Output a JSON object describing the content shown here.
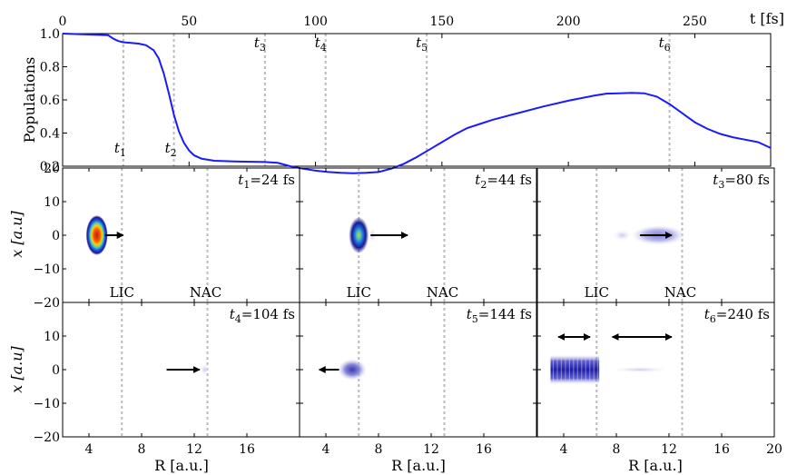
{
  "chart_data": [
    {
      "type": "line",
      "ylabel": "Populations",
      "xunit_label": "t [fs]",
      "xlim": [
        0,
        280
      ],
      "ylim": [
        0.2,
        1.0
      ],
      "x_ticks": [
        "0",
        "50",
        "100",
        "150",
        "200",
        "250"
      ],
      "y_ticks": [
        "1.0",
        "0.8",
        "0.6",
        "0.4",
        "0.2"
      ],
      "markers": [
        {
          "label": "t1",
          "t": 24
        },
        {
          "label": "t2",
          "t": 44
        },
        {
          "label": "t3",
          "t": 80
        },
        {
          "label": "t4",
          "t": 104
        },
        {
          "label": "t5",
          "t": 144
        },
        {
          "label": "t6",
          "t": 240
        }
      ],
      "series": [
        {
          "color": "#1a1aff",
          "x": [
            0,
            18,
            20,
            22,
            24,
            26,
            30,
            33,
            36,
            38,
            40,
            42,
            44,
            46,
            48,
            50,
            52,
            55,
            60,
            70,
            80,
            85,
            90,
            95,
            100,
            105,
            110,
            115,
            120,
            125,
            130,
            135,
            140,
            145,
            150,
            155,
            160,
            165,
            170,
            180,
            190,
            200,
            210,
            215,
            220,
            225,
            230,
            235,
            240,
            245,
            250,
            255,
            260,
            265,
            270,
            275,
            280
          ],
          "y": [
            1.0,
            0.99,
            0.97,
            0.955,
            0.948,
            0.945,
            0.94,
            0.93,
            0.9,
            0.85,
            0.76,
            0.64,
            0.51,
            0.41,
            0.34,
            0.295,
            0.265,
            0.245,
            0.233,
            0.228,
            0.225,
            0.22,
            0.2,
            0.185,
            0.173,
            0.165,
            0.16,
            0.158,
            0.16,
            0.165,
            0.185,
            0.215,
            0.255,
            0.3,
            0.345,
            0.39,
            0.43,
            0.455,
            0.48,
            0.52,
            0.56,
            0.595,
            0.625,
            0.638,
            0.64,
            0.642,
            0.64,
            0.62,
            0.575,
            0.52,
            0.465,
            0.425,
            0.395,
            0.375,
            0.36,
            0.345,
            0.31
          ]
        }
      ]
    },
    {
      "type": "heatmap",
      "xlabel": "R [a.u.]",
      "ylabel": "x [a.u]",
      "xlim": [
        2,
        20
      ],
      "ylim": [
        -20,
        20
      ],
      "x_ticks": [
        "4",
        "8",
        "12",
        "16",
        "20"
      ],
      "y_ticks": [
        "20",
        "10",
        "0",
        "−10",
        "−20"
      ],
      "region_labels": [
        "LIC",
        "NAC"
      ],
      "region_lines_R": [
        6.5,
        13
      ],
      "panels": [
        {
          "title": "t1 = 24 fs",
          "t_label": "t",
          "t_sub": "1",
          "t_value": "=24 fs",
          "show_regions": true,
          "packets": [
            {
              "R": 4.6,
              "x": 0,
              "intensity": "high"
            }
          ],
          "arrows": [
            {
              "from_R": 5.2,
              "to_R": 6.6,
              "dir": "right"
            }
          ]
        },
        {
          "title": "t2 = 44 fs",
          "t_label": "t",
          "t_sub": "2",
          "t_value": "=44 fs",
          "show_regions": true,
          "packets": [
            {
              "R": 6.5,
              "x": 0,
              "intensity": "medium"
            }
          ],
          "arrows": [
            {
              "from_R": 7.4,
              "to_R": 10.2,
              "dir": "right"
            }
          ]
        },
        {
          "title": "t3 = 80 fs",
          "t_label": "t",
          "t_sub": "3",
          "t_value": "=80 fs",
          "show_regions": true,
          "packets": [
            {
              "R": 11.2,
              "x": 0,
              "intensity": "low"
            }
          ],
          "arrows": [
            {
              "from_R": 9.8,
              "to_R": 12.2,
              "dir": "right"
            }
          ]
        },
        {
          "title": "t4 = 104 fs",
          "t_label": "t",
          "t_sub": "4",
          "t_value": "=104 fs",
          "show_regions": false,
          "packets": [
            {
              "R": 12.8,
              "x": 0,
              "intensity": "faint"
            }
          ],
          "arrows": [
            {
              "from_R": 9.9,
              "to_R": 12.4,
              "dir": "right"
            }
          ]
        },
        {
          "title": "t5 = 144 fs",
          "t_label": "t",
          "t_sub": "5",
          "t_value": "=144 fs",
          "show_regions": false,
          "packets": [
            {
              "R": 6.0,
              "x": 0,
              "intensity": "low"
            }
          ],
          "arrows": [
            {
              "from_R": 5.0,
              "to_R": 3.5,
              "dir": "left"
            }
          ]
        },
        {
          "title": "t6 = 240 fs",
          "t_label": "t",
          "t_sub": "6",
          "t_value": "=240 fs",
          "show_regions": false,
          "packets": [
            {
              "R": 4.7,
              "x": 0,
              "intensity": "band"
            }
          ],
          "arrows": [
            {
              "from_R": 3.6,
              "to_R": 6.0,
              "dir": "both"
            },
            {
              "from_R": 7.7,
              "to_R": 12.2,
              "dir": "both"
            }
          ]
        }
      ]
    }
  ]
}
